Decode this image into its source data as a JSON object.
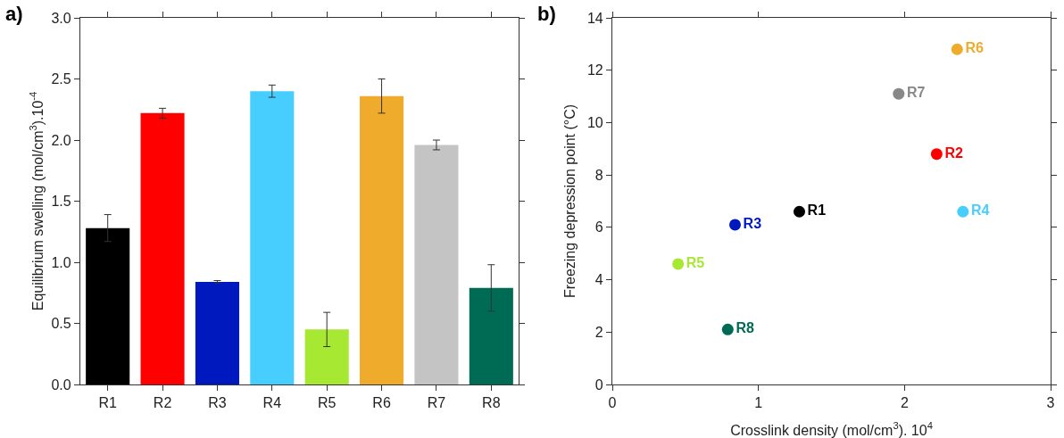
{
  "chart_data": [
    {
      "type": "bar",
      "title": "a)",
      "ylabel": "Equilibrium swelling (mol/cm$^{3}$).10$^{-4}$",
      "categories": [
        "R1",
        "R2",
        "R3",
        "R4",
        "R5",
        "R6",
        "R7",
        "R8"
      ],
      "values": [
        1.28,
        2.22,
        0.84,
        2.4,
        0.45,
        2.36,
        1.96,
        0.79
      ],
      "errors": [
        0.11,
        0.04,
        0.01,
        0.05,
        0.14,
        0.14,
        0.04,
        0.19
      ],
      "colors": [
        "#000000",
        "#ff0000",
        "#0019bf",
        "#48cdff",
        "#a6e832",
        "#eeab2c",
        "#c4c4c4",
        "#006b55"
      ],
      "ylim": [
        0,
        3
      ],
      "yticks": [
        {
          "value": 0,
          "label": "0.0"
        },
        {
          "value": 0.5,
          "label": "0.5"
        },
        {
          "value": 1,
          "label": "1.0"
        },
        {
          "value": 1.5,
          "label": "1.5"
        },
        {
          "value": 2,
          "label": "2.0"
        },
        {
          "value": 2.5,
          "label": "2.5"
        },
        {
          "value": 3,
          "label": "3.0"
        }
      ],
      "grid": false,
      "legend": false
    },
    {
      "type": "scatter",
      "title": "b)",
      "xlabel": "Crosslink density (mol/cm$^{3}$). 10$^{4}$",
      "ylabel": "Freezing depression point (°C)",
      "marker": "circle",
      "series": [
        {
          "name": "R1",
          "color": "#000000",
          "x": [
            1.28
          ],
          "values": [
            6.6
          ]
        },
        {
          "name": "R2",
          "color": "#ff0000",
          "x": [
            2.22
          ],
          "values": [
            8.8
          ]
        },
        {
          "name": "R3",
          "color": "#0019bf",
          "x": [
            0.84
          ],
          "values": [
            6.1
          ]
        },
        {
          "name": "R4",
          "color": "#48cdff",
          "x": [
            2.4
          ],
          "values": [
            6.6
          ]
        },
        {
          "name": "R5",
          "color": "#a6e832",
          "x": [
            0.45
          ],
          "values": [
            4.6
          ]
        },
        {
          "name": "R6",
          "color": "#eeab2c",
          "x": [
            2.36
          ],
          "values": [
            12.8
          ]
        },
        {
          "name": "R7",
          "color": "#888888",
          "x": [
            1.96
          ],
          "values": [
            11.1
          ]
        },
        {
          "name": "R8",
          "color": "#006b55",
          "x": [
            0.79
          ],
          "values": [
            2.1
          ]
        }
      ],
      "xlim": [
        0,
        3
      ],
      "xticks": [
        0,
        1,
        2,
        3
      ],
      "ylim": [
        0,
        14
      ],
      "yticks": [
        0,
        2,
        4,
        6,
        8,
        10,
        12,
        14
      ],
      "grid": false,
      "legend": false
    }
  ]
}
